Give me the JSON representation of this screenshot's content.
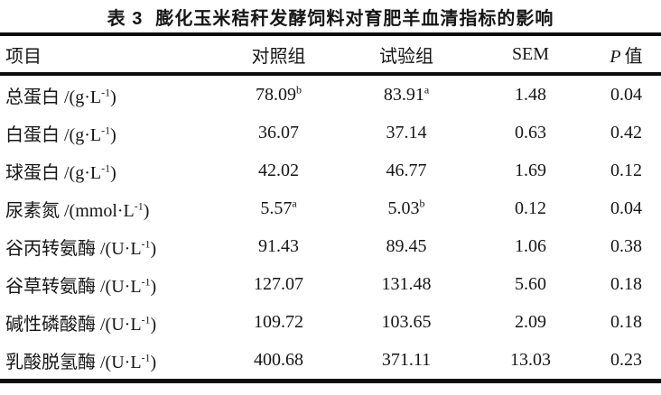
{
  "table": {
    "caption_prefix": "表 3",
    "caption_text": "膨化玉米秸秆发酵饲料对育肥羊血清指标的影响",
    "header": {
      "item": "项目",
      "control": "对照组",
      "test": "试验组",
      "sem": "SEM",
      "p_italic": "P",
      "p_text": "值"
    },
    "rows": [
      {
        "label": "总蛋白",
        "unit_main": "/(g·L",
        "unit_sup": "-1",
        "unit_close": ")",
        "control": "78.09",
        "control_sup": "b",
        "test": "83.91",
        "test_sup": "a",
        "sem": "1.48",
        "p": "0.04"
      },
      {
        "label": "白蛋白",
        "unit_main": "/(g·L",
        "unit_sup": "-1",
        "unit_close": ")",
        "control": "36.07",
        "control_sup": "",
        "test": "37.14",
        "test_sup": "",
        "sem": "0.63",
        "p": "0.42"
      },
      {
        "label": "球蛋白",
        "unit_main": "/(g·L",
        "unit_sup": "-1",
        "unit_close": ")",
        "control": "42.02",
        "control_sup": "",
        "test": "46.77",
        "test_sup": "",
        "sem": "1.69",
        "p": "0.12"
      },
      {
        "label": "尿素氮",
        "unit_main": "/(mmol·L",
        "unit_sup": "-1",
        "unit_close": ")",
        "control": "5.57",
        "control_sup": "a",
        "test": "5.03",
        "test_sup": "b",
        "sem": "0.12",
        "p": "0.04"
      },
      {
        "label": "谷丙转氨酶",
        "unit_main": "/(U·L",
        "unit_sup": "-1",
        "unit_close": ")",
        "control": "91.43",
        "control_sup": "",
        "test": "89.45",
        "test_sup": "",
        "sem": "1.06",
        "p": "0.38"
      },
      {
        "label": "谷草转氨酶",
        "unit_main": "/(U·L",
        "unit_sup": "-1",
        "unit_close": ")",
        "control": "127.07",
        "control_sup": "",
        "test": "131.48",
        "test_sup": "",
        "sem": "5.60",
        "p": "0.18"
      },
      {
        "label": "碱性磷酸酶",
        "unit_main": "/(U·L",
        "unit_sup": "-1",
        "unit_close": ")",
        "control": "109.72",
        "control_sup": "",
        "test": "103.65",
        "test_sup": "",
        "sem": "2.09",
        "p": "0.18"
      },
      {
        "label": "乳酸脱氢酶",
        "unit_main": "/(U·L",
        "unit_sup": "-1",
        "unit_close": ")",
        "control": "400.68",
        "control_sup": "",
        "test": "371.11",
        "test_sup": "",
        "sem": "13.03",
        "p": "0.23"
      }
    ]
  }
}
